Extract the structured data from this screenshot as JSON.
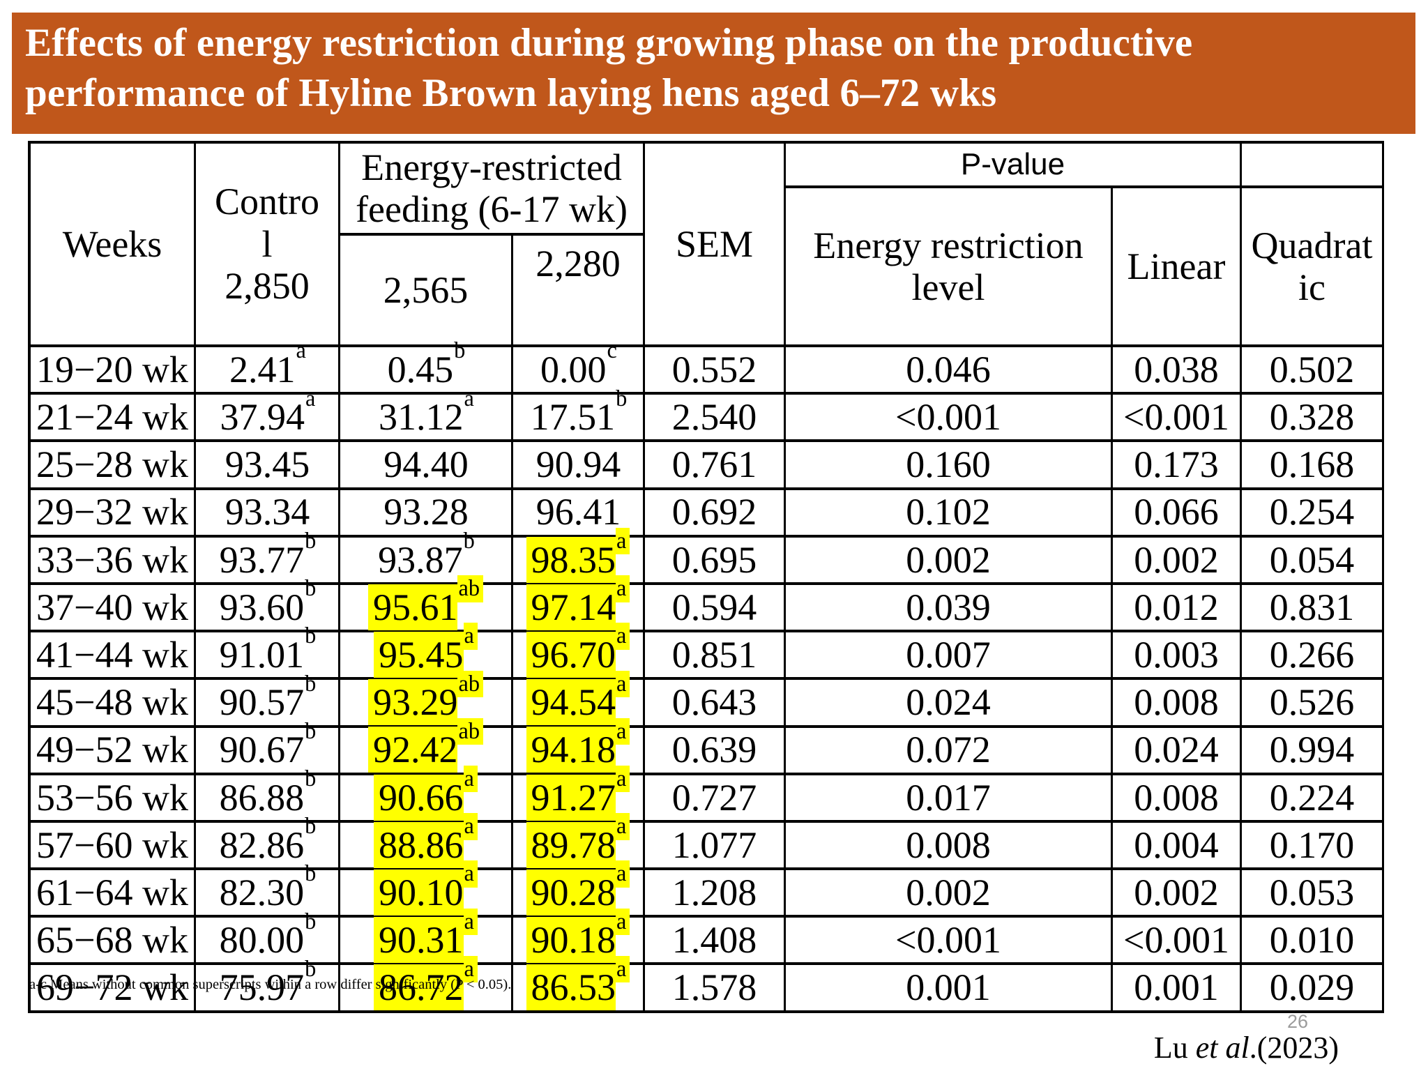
{
  "slide": {
    "title": "Effects of energy restriction during growing phase on the productive\nperformance of Hyline Brown laying hens aged 6–72 wks",
    "footnote": "a-c Means without common superscripts within a row differ significantly (P < 0.05).",
    "page_number": "26",
    "citation": {
      "prefix": "Lu ",
      "italic": "et al",
      "suffix": ".(2023)"
    },
    "colors": {
      "banner": "#C0571B",
      "highlight": "#FFFF00",
      "title_text": "#FFFFFF"
    }
  },
  "table": {
    "headers": {
      "weeks": "Weeks",
      "control": "Contro\nl\n2,850",
      "energy_restricted": "Energy-restricted\nfeeding (6-17 wk)",
      "col_2565": "2,565",
      "col_2280": "2,280",
      "sem": "SEM",
      "p_value": "P-value",
      "energy_restriction_level": "Energy restriction\nlevel",
      "linear": "Linear",
      "quadratic": "Quadrat\nic"
    },
    "rows": [
      {
        "week": "19−20 wk",
        "control": {
          "v": "2.41",
          "sup": "a"
        },
        "diet2565": {
          "v": "0.45",
          "sup": "b",
          "hl": false
        },
        "diet2280": {
          "v": "0.00",
          "sup": "c",
          "hl": false
        },
        "sem": "0.552",
        "p_level": "0.046",
        "linear": "0.038",
        "quadratic": "0.502"
      },
      {
        "week": "21−24 wk",
        "control": {
          "v": "37.94",
          "sup": "a"
        },
        "diet2565": {
          "v": "31.12",
          "sup": "a",
          "hl": false
        },
        "diet2280": {
          "v": "17.51",
          "sup": "b",
          "hl": false
        },
        "sem": "2.540",
        "p_level": "<0.001",
        "linear": "<0.001",
        "quadratic": "0.328"
      },
      {
        "week": "25−28 wk",
        "control": {
          "v": "93.45"
        },
        "diet2565": {
          "v": "94.40",
          "hl": false
        },
        "diet2280": {
          "v": "90.94",
          "hl": false
        },
        "sem": "0.761",
        "p_level": "0.160",
        "linear": "0.173",
        "quadratic": "0.168"
      },
      {
        "week": "29−32 wk",
        "control": {
          "v": "93.34"
        },
        "diet2565": {
          "v": "93.28",
          "hl": false
        },
        "diet2280": {
          "v": "96.41",
          "hl": false
        },
        "sem": "0.692",
        "p_level": "0.102",
        "linear": "0.066",
        "quadratic": "0.254"
      },
      {
        "week": "33−36 wk",
        "control": {
          "v": "93.77",
          "sup": "b"
        },
        "diet2565": {
          "v": "93.87",
          "sup": "b",
          "hl": false
        },
        "diet2280": {
          "v": "98.35",
          "sup": "a",
          "hl": true
        },
        "sem": "0.695",
        "p_level": "0.002",
        "linear": "0.002",
        "quadratic": "0.054"
      },
      {
        "week": "37−40 wk",
        "control": {
          "v": "93.60",
          "sup": "b"
        },
        "diet2565": {
          "v": "95.61",
          "sup": "ab",
          "hl": true
        },
        "diet2280": {
          "v": "97.14",
          "sup": "a",
          "hl": true
        },
        "sem": "0.594",
        "p_level": "0.039",
        "linear": "0.012",
        "quadratic": "0.831"
      },
      {
        "week": "41−44 wk",
        "control": {
          "v": "91.01",
          "sup": "b"
        },
        "diet2565": {
          "v": "95.45",
          "sup": "a",
          "hl": true
        },
        "diet2280": {
          "v": "96.70",
          "sup": "a",
          "hl": true
        },
        "sem": "0.851",
        "p_level": "0.007",
        "linear": "0.003",
        "quadratic": "0.266"
      },
      {
        "week": "45−48 wk",
        "control": {
          "v": "90.57",
          "sup": "b"
        },
        "diet2565": {
          "v": "93.29",
          "sup": "ab",
          "hl": true
        },
        "diet2280": {
          "v": "94.54",
          "sup": "a",
          "hl": true
        },
        "sem": "0.643",
        "p_level": "0.024",
        "linear": "0.008",
        "quadratic": "0.526"
      },
      {
        "week": "49−52 wk",
        "control": {
          "v": "90.67",
          "sup": "b"
        },
        "diet2565": {
          "v": "92.42",
          "sup": "ab",
          "hl": true
        },
        "diet2280": {
          "v": "94.18",
          "sup": "a",
          "hl": true
        },
        "sem": "0.639",
        "p_level": "0.072",
        "linear": "0.024",
        "quadratic": "0.994"
      },
      {
        "week": "53−56 wk",
        "control": {
          "v": "86.88",
          "sup": "b"
        },
        "diet2565": {
          "v": "90.66",
          "sup": "a",
          "hl": true
        },
        "diet2280": {
          "v": "91.27",
          "sup": "a",
          "hl": true
        },
        "sem": "0.727",
        "p_level": "0.017",
        "linear": "0.008",
        "quadratic": "0.224"
      },
      {
        "week": "57−60 wk",
        "control": {
          "v": "82.86",
          "sup": "b"
        },
        "diet2565": {
          "v": "88.86",
          "sup": "a",
          "hl": true
        },
        "diet2280": {
          "v": "89.78",
          "sup": "a",
          "hl": true
        },
        "sem": "1.077",
        "p_level": "0.008",
        "linear": "0.004",
        "quadratic": "0.170"
      },
      {
        "week": "61−64 wk",
        "control": {
          "v": "82.30",
          "sup": "b"
        },
        "diet2565": {
          "v": "90.10",
          "sup": "a",
          "hl": true
        },
        "diet2280": {
          "v": "90.28",
          "sup": "a",
          "hl": true
        },
        "sem": "1.208",
        "p_level": "0.002",
        "linear": "0.002",
        "quadratic": "0.053"
      },
      {
        "week": "65−68 wk",
        "control": {
          "v": "80.00",
          "sup": "b"
        },
        "diet2565": {
          "v": "90.31",
          "sup": "a",
          "hl": true
        },
        "diet2280": {
          "v": "90.18",
          "sup": "a",
          "hl": true
        },
        "sem": "1.408",
        "p_level": "<0.001",
        "linear": "<0.001",
        "quadratic": "0.010"
      },
      {
        "week": "69−72 wk",
        "control": {
          "v": "75.97",
          "sup": "b"
        },
        "diet2565": {
          "v": "86.72",
          "sup": "a",
          "hl": true
        },
        "diet2280": {
          "v": "86.53",
          "sup": "a",
          "hl": true
        },
        "sem": "1.578",
        "p_level": "0.001",
        "linear": "0.001",
        "quadratic": "0.029"
      }
    ]
  }
}
